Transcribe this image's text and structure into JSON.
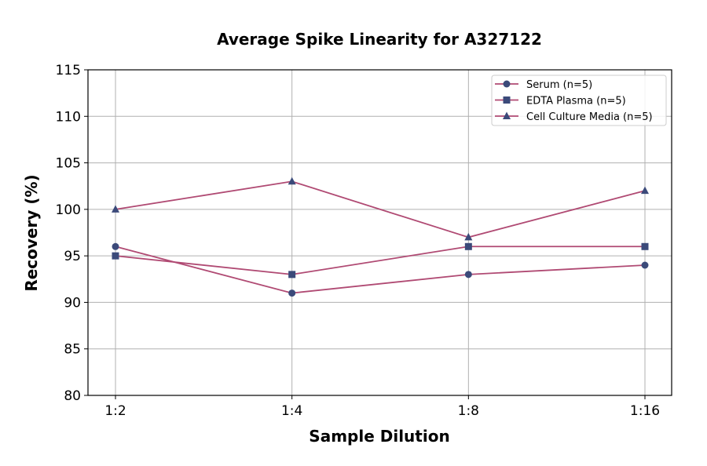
{
  "chart_data": {
    "type": "line",
    "title": "Average Spike Linearity for A327122",
    "xlabel": "Sample Dilution",
    "ylabel": "Recovery (%)",
    "categories": [
      "1:2",
      "1:4",
      "1:8",
      "1:16"
    ],
    "ylim": [
      80,
      115
    ],
    "yticks": [
      80,
      85,
      90,
      95,
      100,
      105,
      110,
      115
    ],
    "grid": true,
    "legend_position": "top-right",
    "line_color": "#b04a73",
    "marker_color": "#3b4a7a",
    "series": [
      {
        "name": "Serum (n=5)",
        "marker": "circle",
        "values": [
          96,
          91,
          93,
          94
        ]
      },
      {
        "name": "EDTA Plasma (n=5)",
        "marker": "square",
        "values": [
          95,
          93,
          96,
          96
        ]
      },
      {
        "name": "Cell Culture Media (n=5)",
        "marker": "triangle",
        "values": [
          100,
          103,
          97,
          102
        ]
      }
    ]
  }
}
